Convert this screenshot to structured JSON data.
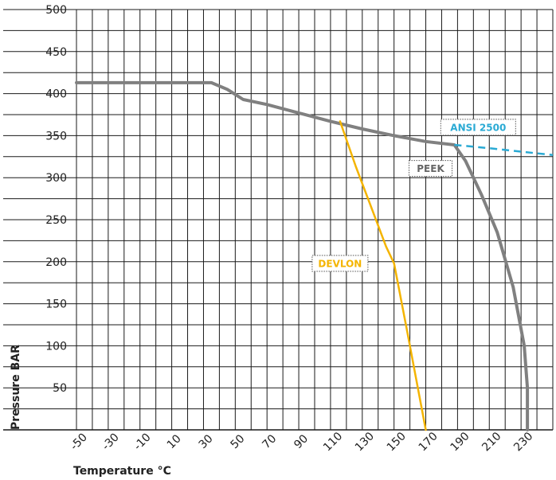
{
  "chart_data": {
    "type": "line",
    "xlabel": "Temperature °C",
    "ylabel": "Pressure BAR",
    "x_ticks": [
      "-50",
      "-30",
      "-10",
      "10",
      "30",
      "50",
      "70",
      "90",
      "110",
      "130",
      "150",
      "170",
      "190",
      "210",
      "230"
    ],
    "y_ticks": [
      "50",
      "100",
      "150",
      "200",
      "250",
      "300",
      "350",
      "400",
      "450",
      "500"
    ],
    "xlim": [
      -50,
      250
    ],
    "ylim": [
      0,
      500
    ],
    "grid": true,
    "series": [
      {
        "name": "PEEK",
        "color": "#808080",
        "points": [
          [
            -50,
            413
          ],
          [
            35,
            413
          ],
          [
            45,
            405
          ],
          [
            55,
            393
          ],
          [
            70,
            387
          ],
          [
            90,
            377
          ],
          [
            110,
            367
          ],
          [
            130,
            358
          ],
          [
            150,
            350
          ],
          [
            170,
            343
          ],
          [
            188,
            339
          ],
          [
            195,
            320
          ],
          [
            205,
            280
          ],
          [
            215,
            235
          ],
          [
            225,
            170
          ],
          [
            232,
            100
          ],
          [
            234,
            50
          ],
          [
            234,
            0
          ]
        ]
      },
      {
        "name": "ANSI 2500",
        "color": "#2aaad4",
        "dashed": true,
        "points": [
          [
            188,
            339
          ],
          [
            210,
            335
          ],
          [
            230,
            331
          ],
          [
            250,
            327
          ]
        ]
      },
      {
        "name": "DEVLON",
        "color": "#f4b400",
        "points": [
          [
            116,
            367
          ],
          [
            126,
            313
          ],
          [
            136,
            263
          ],
          [
            145,
            218
          ],
          [
            150,
            198
          ],
          [
            158,
            120
          ],
          [
            170,
            0
          ]
        ]
      }
    ],
    "annotations": [
      {
        "text": "ANSI 2500",
        "color": "#2aaad4",
        "x": 203,
        "y": 360
      },
      {
        "text": "PEEK",
        "color": "#666666",
        "x": 173,
        "y": 311
      },
      {
        "text": "DEVLON",
        "color": "#f4b400",
        "x": 116,
        "y": 198
      }
    ]
  }
}
